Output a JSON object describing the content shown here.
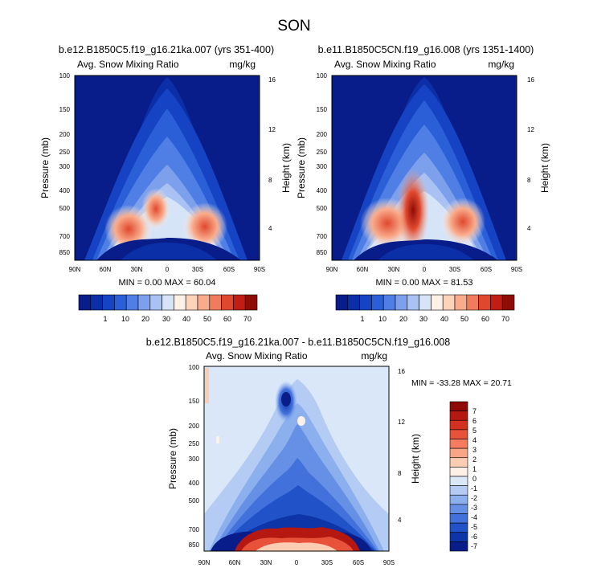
{
  "figure_title": "SON",
  "chart_data": [
    {
      "type": "heatmap",
      "title": "b.e12.B1850C5.f19_g16.21ka.007 (yrs 351-400)",
      "subtitle_left": "Avg. Snow Mixing Ratio",
      "subtitle_right": "mg/kg",
      "ylabel": "Pressure (mb)",
      "ylabel_right": "Height (km)",
      "x_ticks": [
        "90N",
        "60N",
        "30N",
        "0",
        "30S",
        "60S",
        "90S"
      ],
      "y_ticks": [
        "100",
        "150",
        "200",
        "250",
        "300",
        "400",
        "500",
        "700",
        "850"
      ],
      "y_ticks_right": [
        "16",
        "12",
        "8",
        "4"
      ],
      "min_max": "MIN =  0.00  MAX = 60.04",
      "colorbar_levels": [
        "1",
        "10",
        "20",
        "30",
        "40",
        "50",
        "60",
        "70"
      ]
    },
    {
      "type": "heatmap",
      "title": "b.e11.B1850C5CN.f19_g16.008 (yrs 1351-1400)",
      "subtitle_left": "Avg. Snow Mixing Ratio",
      "subtitle_right": "mg/kg",
      "ylabel": "Pressure (mb)",
      "ylabel_right": "Height (km)",
      "x_ticks": [
        "90N",
        "60N",
        "30N",
        "0",
        "30S",
        "60S",
        "90S"
      ],
      "y_ticks": [
        "100",
        "150",
        "200",
        "250",
        "300",
        "400",
        "500",
        "700",
        "850"
      ],
      "y_ticks_right": [
        "16",
        "12",
        "8",
        "4"
      ],
      "min_max": "MIN =  0.00  MAX = 81.53",
      "colorbar_levels": [
        "1",
        "10",
        "20",
        "30",
        "40",
        "50",
        "60",
        "70"
      ]
    },
    {
      "type": "heatmap",
      "title": "b.e12.B1850C5.f19_g16.21ka.007 - b.e11.B1850C5CN.f19_g16.008",
      "subtitle_left": "Avg. Snow Mixing Ratio",
      "subtitle_right": "mg/kg",
      "ylabel": "Pressure (mb)",
      "ylabel_right": "Height (km)",
      "x_ticks": [
        "90N",
        "60N",
        "30N",
        "0",
        "30S",
        "60S",
        "90S"
      ],
      "y_ticks": [
        "100",
        "150",
        "200",
        "250",
        "300",
        "400",
        "500",
        "700",
        "850"
      ],
      "y_ticks_right": [
        "16",
        "12",
        "8",
        "4"
      ],
      "min_max": "MIN = -33.28  MAX =  20.71",
      "colorbar_levels": [
        "7",
        "6",
        "5",
        "4",
        "3",
        "2",
        "1",
        "0",
        "-1",
        "-2",
        "-3",
        "-4",
        "-5",
        "-6",
        "-7"
      ]
    }
  ],
  "colors": {
    "seq_scale": [
      "#081d8a",
      "#0b2fa6",
      "#1643c4",
      "#2a5fd8",
      "#4f7fe4",
      "#7da0ec",
      "#a9c2f3",
      "#d6e4f8",
      "#fdf0e6",
      "#fcd4bc",
      "#f9ac8c",
      "#f07c5c",
      "#e0482e",
      "#c01d14",
      "#8e0b06"
    ],
    "div_scale": [
      "#8e0b06",
      "#b51811",
      "#d4301f",
      "#e9523a",
      "#f57c5e",
      "#f9a686",
      "#fccdb2",
      "#fdf0e6",
      "#d9e7f8",
      "#b4ccf4",
      "#8cb0ee",
      "#6690e6",
      "#4271dc",
      "#2152c8",
      "#0d35a8",
      "#081d8a"
    ]
  }
}
